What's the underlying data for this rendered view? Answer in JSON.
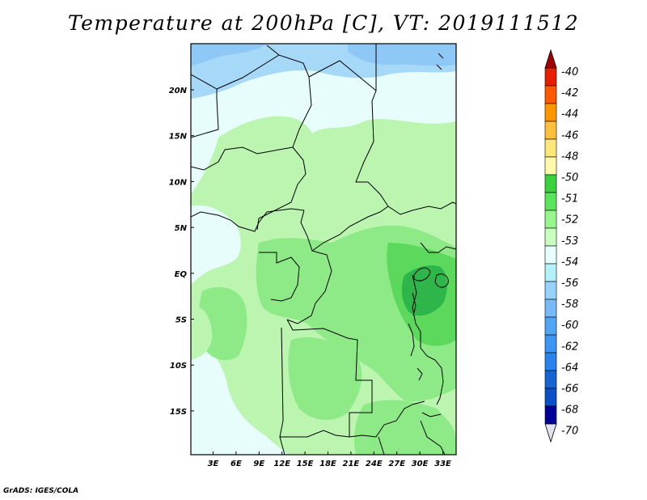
{
  "title": "Temperature at 200hPa [C], VT: 2019111512",
  "credit": "GrADS: IGES/COLA",
  "map": {
    "lat_ticks": [
      "20N",
      "15N",
      "10N",
      "5N",
      "EQ",
      "5S",
      "10S",
      "15S"
    ],
    "lon_ticks": [
      "3E",
      "6E",
      "9E",
      "12E",
      "15E",
      "18E",
      "21E",
      "24E",
      "27E",
      "30E",
      "33E"
    ]
  },
  "colorbar": {
    "labels": [
      "-40",
      "-42",
      "-44",
      "-46",
      "-48",
      "-50",
      "-51",
      "-52",
      "-53",
      "-54",
      "-56",
      "-58",
      "-60",
      "-62",
      "-64",
      "-66",
      "-68",
      "-70"
    ],
    "colors": [
      "#a50000",
      "#e81e00",
      "#ff5a00",
      "#ff9600",
      "#ffbe3c",
      "#ffe678",
      "#fffaaa",
      "#37d23c",
      "#5ae65a",
      "#96f58c",
      "#c8ffbe",
      "#e6ffff",
      "#b4f0fa",
      "#96d2fa",
      "#78b9fa",
      "#50a5f5",
      "#3c96f5",
      "#2882f0",
      "#1464d2",
      "#0a50c8",
      "#000096",
      "#e1e1f0"
    ]
  },
  "field_colors": {
    "light_blue": "#a6d8f8",
    "mid_blue": "#8ec8f6",
    "pale_cyan": "#e6fdfc",
    "light_green": "#bbf5b0",
    "green": "#8eea86",
    "mid_green": "#5cd85c",
    "dark_green": "#2eb64a"
  }
}
